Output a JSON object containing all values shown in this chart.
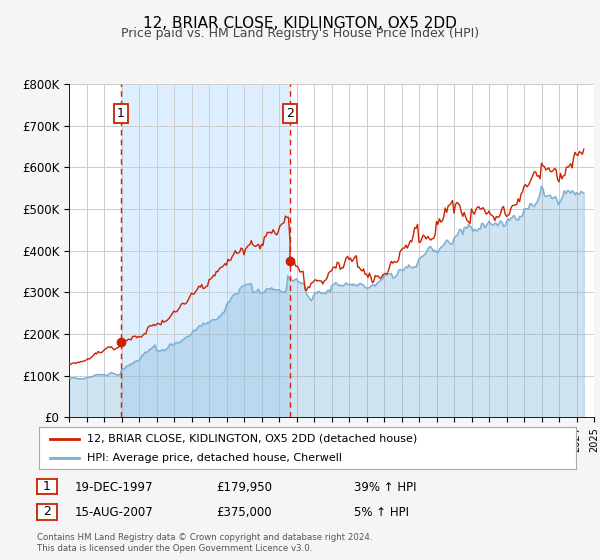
{
  "title": "12, BRIAR CLOSE, KIDLINGTON, OX5 2DD",
  "subtitle": "Price paid vs. HM Land Registry's House Price Index (HPI)",
  "ylim": [
    0,
    800000
  ],
  "yticks": [
    0,
    100000,
    200000,
    300000,
    400000,
    500000,
    600000,
    700000,
    800000
  ],
  "ytick_labels": [
    "£0",
    "£100K",
    "£200K",
    "£300K",
    "£400K",
    "£500K",
    "£600K",
    "£700K",
    "£800K"
  ],
  "hpi_color": "#7bafd4",
  "price_color": "#cc2200",
  "sale1_date": 1997.97,
  "sale1_price": 179950,
  "sale2_date": 2007.62,
  "sale2_price": 375000,
  "shade_color": "#ddeeff",
  "vline_color": "#dd2200",
  "legend_label1": "12, BRIAR CLOSE, KIDLINGTON, OX5 2DD (detached house)",
  "legend_label2": "HPI: Average price, detached house, Cherwell",
  "sale1_text": "19-DEC-1997",
  "sale1_amount": "£179,950",
  "sale1_hpi": "39% ↑ HPI",
  "sale2_text": "15-AUG-2007",
  "sale2_amount": "£375,000",
  "sale2_hpi": "5% ↑ HPI",
  "footer1": "Contains HM Land Registry data © Crown copyright and database right 2024.",
  "footer2": "This data is licensed under the Open Government Licence v3.0.",
  "bg_color": "#f5f5f5",
  "plot_bg": "#ffffff",
  "grid_color": "#cccccc"
}
